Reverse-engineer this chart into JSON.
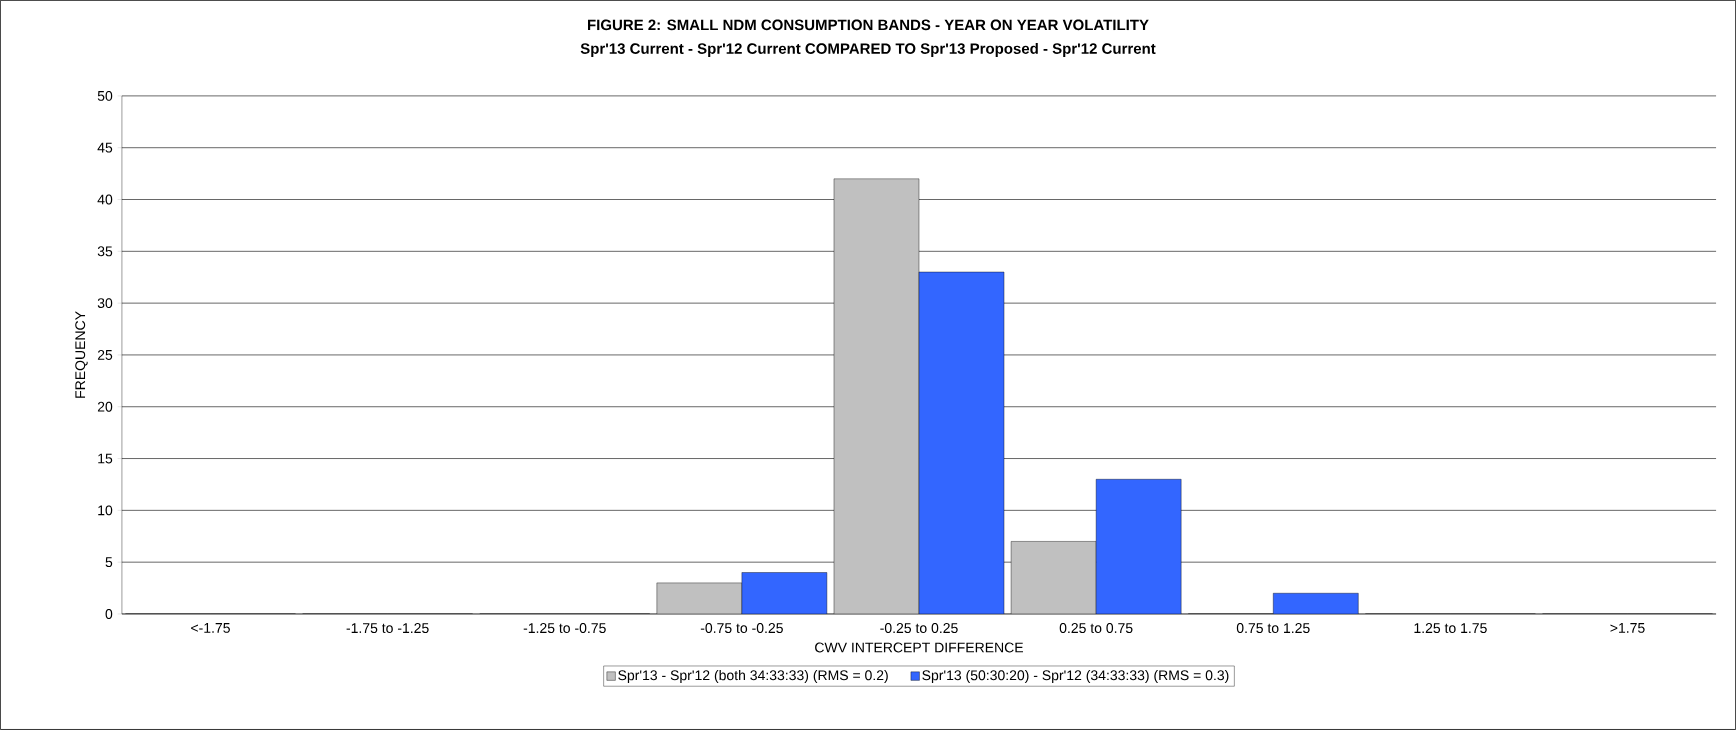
{
  "chart_data": {
    "type": "bar",
    "title": "FIGURE 2: SMALL NDM CONSUMPTION BANDS - YEAR ON YEAR VOLATILITY",
    "subtitle": "Spr'13 Current - Spr'12 Current COMPARED TO Spr'13 Proposed - Spr'12 Current",
    "xlabel": "CWV INTERCEPT DIFFERENCE",
    "ylabel": "FREQUENCY",
    "categories": [
      "<-1.75",
      "-1.75 to -1.25",
      "-1.25 to -0.75",
      "-0.75 to -0.25",
      "-0.25 to 0.25",
      "0.25 to 0.75",
      "0.75 to 1.25",
      "1.25 to 1.75",
      ">1.75"
    ],
    "series": [
      {
        "name": "Spr'13 - Spr'12 (both 34:33:33) (RMS = 0.2)",
        "color": "#c0c0c0",
        "values": [
          0,
          0,
          0,
          3,
          42,
          7,
          0,
          0,
          0
        ]
      },
      {
        "name": "Spr'13 (50:30:20) - Spr'12 (34:33:33) (RMS = 0.3)",
        "color": "#3366ff",
        "values": [
          0,
          0,
          0,
          4,
          33,
          13,
          2,
          0,
          0
        ]
      }
    ],
    "ylim": [
      0,
      50
    ],
    "yticks": [
      0,
      5,
      10,
      15,
      20,
      25,
      30,
      35,
      40,
      45,
      50
    ],
    "grid": "y",
    "legend": "bottom"
  }
}
